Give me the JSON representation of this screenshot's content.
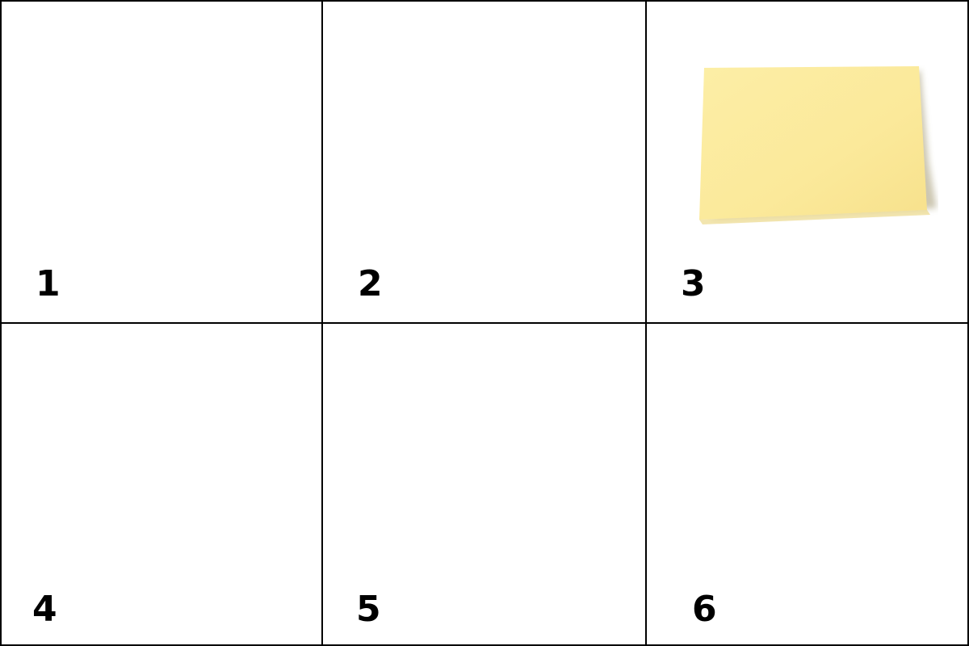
{
  "cells": [
    {
      "number": "1"
    },
    {
      "number": "2"
    },
    {
      "number": "3"
    },
    {
      "number": "4"
    },
    {
      "number": "5"
    },
    {
      "number": "6"
    }
  ],
  "colors": {
    "grid_line": "#000000",
    "background": "#ffffff",
    "note_fill": "#FBEA9B",
    "note_shadow": "#8A7A3A"
  },
  "sticky_note": {
    "icon": "sticky-note-icon",
    "cell": "3"
  }
}
